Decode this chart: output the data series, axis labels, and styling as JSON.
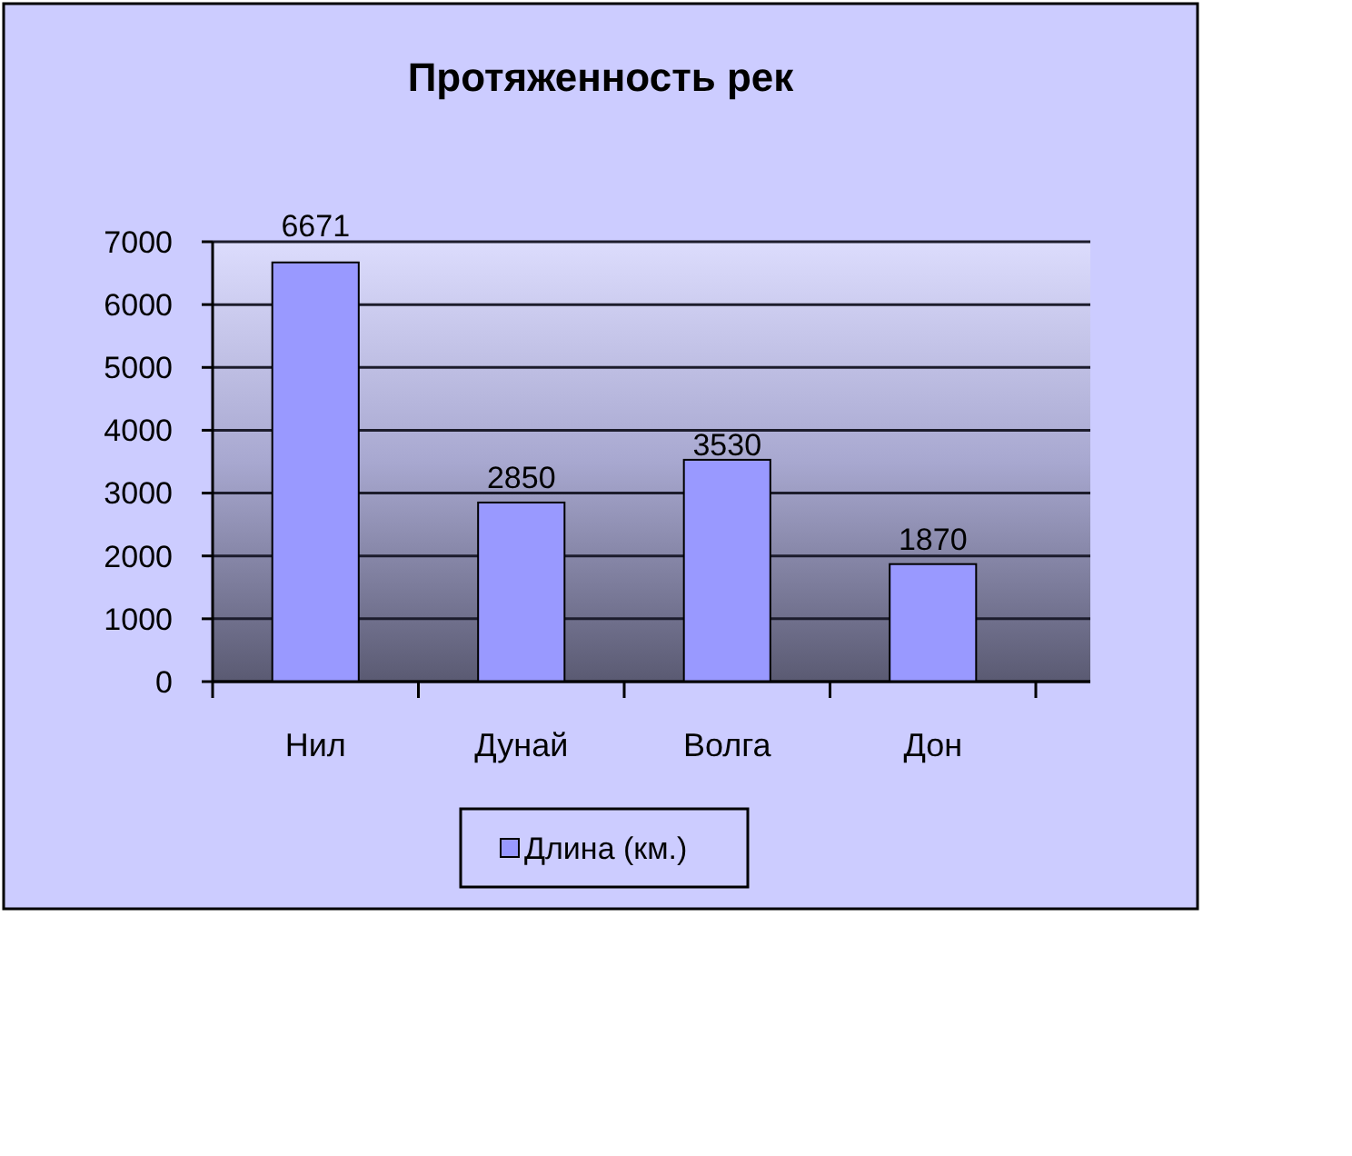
{
  "chart_data": {
    "type": "bar",
    "title": "Протяженность рек",
    "categories": [
      "Нил",
      "Дунай",
      "Волга",
      "Дон"
    ],
    "series": [
      {
        "name": "Длина (км.)",
        "color": "#9999ff",
        "values": [
          6671,
          2850,
          3530,
          1870
        ]
      }
    ],
    "ylim": [
      0,
      7000
    ],
    "yticks": [
      0,
      1000,
      2000,
      3000,
      4000,
      5000,
      6000,
      7000
    ],
    "grid": "y",
    "legend": "bottom",
    "data_labels": true
  }
}
